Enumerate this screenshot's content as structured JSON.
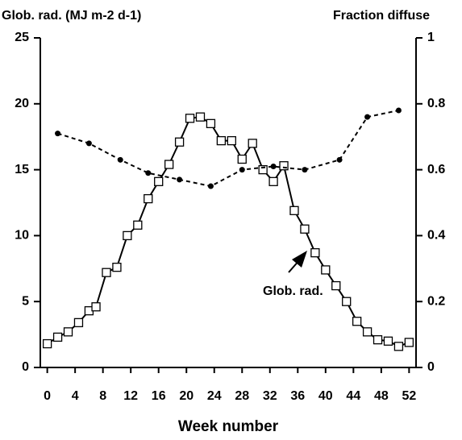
{
  "chart_data": {
    "type": "line",
    "y_label": "Glob. rad. (MJ m-2 d-1)",
    "y2_label": "Fraction diffuse",
    "x_label": "Week number",
    "annotation": "Glob. rad.",
    "xlim": [
      -1,
      53
    ],
    "xticks": [
      0,
      4,
      8,
      12,
      16,
      20,
      24,
      28,
      32,
      36,
      40,
      44,
      48,
      52
    ],
    "ylim": [
      0,
      25
    ],
    "yticks": [
      0,
      5,
      10,
      15,
      20,
      25
    ],
    "y2lim": [
      0,
      1
    ],
    "y2ticks": [
      {
        "value": 0,
        "label": "0"
      },
      {
        "value": 0.2,
        "label": "0.2"
      },
      {
        "value": 0.4,
        "label": "0.4"
      },
      {
        "value": 0.6,
        "label": "0.6"
      },
      {
        "value": 0.8,
        "label": "0.8"
      },
      {
        "value": 1,
        "label": "1"
      }
    ],
    "series": [
      {
        "color": "#000000",
        "marker": "square",
        "dash": false,
        "x": [
          0,
          1.5,
          3,
          4.5,
          6,
          7,
          8.5,
          10,
          11.5,
          13,
          14.5,
          16,
          17.5,
          19,
          20.5,
          22,
          23.5,
          25,
          26.5,
          28,
          29.5,
          31,
          32.5,
          34,
          35.5,
          37,
          38.5,
          40,
          41.5,
          43,
          44.5,
          46,
          47.5,
          49,
          50.5,
          52
        ],
        "values": [
          1.8,
          2.3,
          2.7,
          3.4,
          4.3,
          4.6,
          7.2,
          7.6,
          10.0,
          10.8,
          12.8,
          14.1,
          15.4,
          17.1,
          18.9,
          19.0,
          18.5,
          17.2,
          17.2,
          15.8,
          17.0,
          15.0,
          14.1,
          15.3,
          11.9,
          10.5,
          8.7,
          7.4,
          6.2,
          5.0,
          3.5,
          2.7,
          2.1,
          2.0,
          1.6,
          1.9
        ]
      },
      {
        "color": "#000000",
        "marker": "dot",
        "dash": true,
        "axis": "y2",
        "x": [
          1.5,
          6,
          10.5,
          14.5,
          19,
          23.5,
          28,
          32.5,
          37,
          42,
          46,
          50.5
        ],
        "values": [
          0.71,
          0.68,
          0.63,
          0.59,
          0.57,
          0.55,
          0.6,
          0.61,
          0.6,
          0.63,
          0.76,
          0.78
        ]
      }
    ]
  }
}
